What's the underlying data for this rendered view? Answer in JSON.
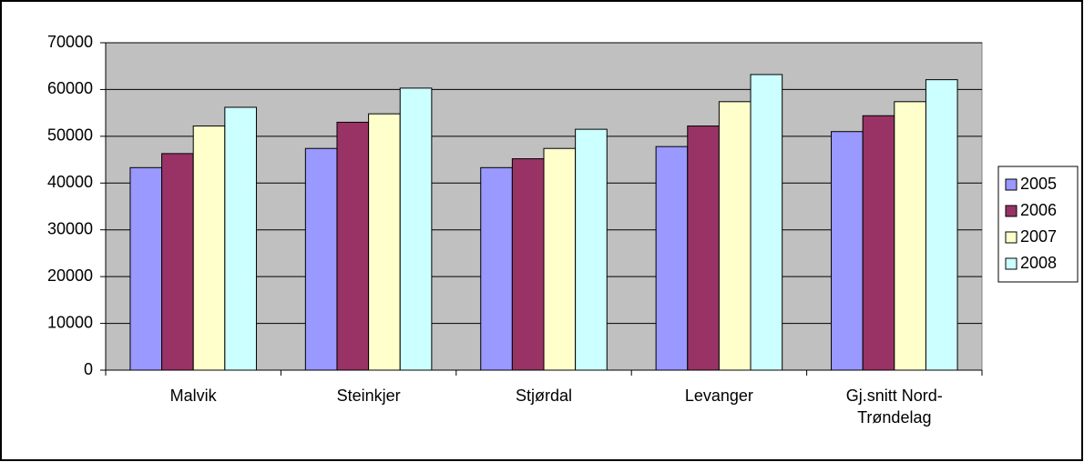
{
  "chart_data": {
    "type": "bar",
    "categories": [
      "Malvik",
      "Steinkjer",
      "Stjørdal",
      "Levanger",
      "Gj.snitt Nord-Trøndelag"
    ],
    "series": [
      {
        "name": "2005",
        "color": "#9999ff",
        "values": [
          43300,
          47400,
          43300,
          47800,
          51000
        ]
      },
      {
        "name": "2006",
        "color": "#993366",
        "values": [
          46300,
          53000,
          45200,
          52200,
          54400
        ]
      },
      {
        "name": "2007",
        "color": "#ffffcc",
        "values": [
          52200,
          54800,
          47400,
          57400,
          57400
        ]
      },
      {
        "name": "2008",
        "color": "#ccffff",
        "values": [
          56200,
          60300,
          51500,
          63200,
          62100
        ]
      }
    ],
    "ylim": [
      0,
      70000
    ],
    "yticks": [
      0,
      10000,
      20000,
      30000,
      40000,
      50000,
      60000,
      70000
    ],
    "grid": true,
    "legend": "right"
  }
}
